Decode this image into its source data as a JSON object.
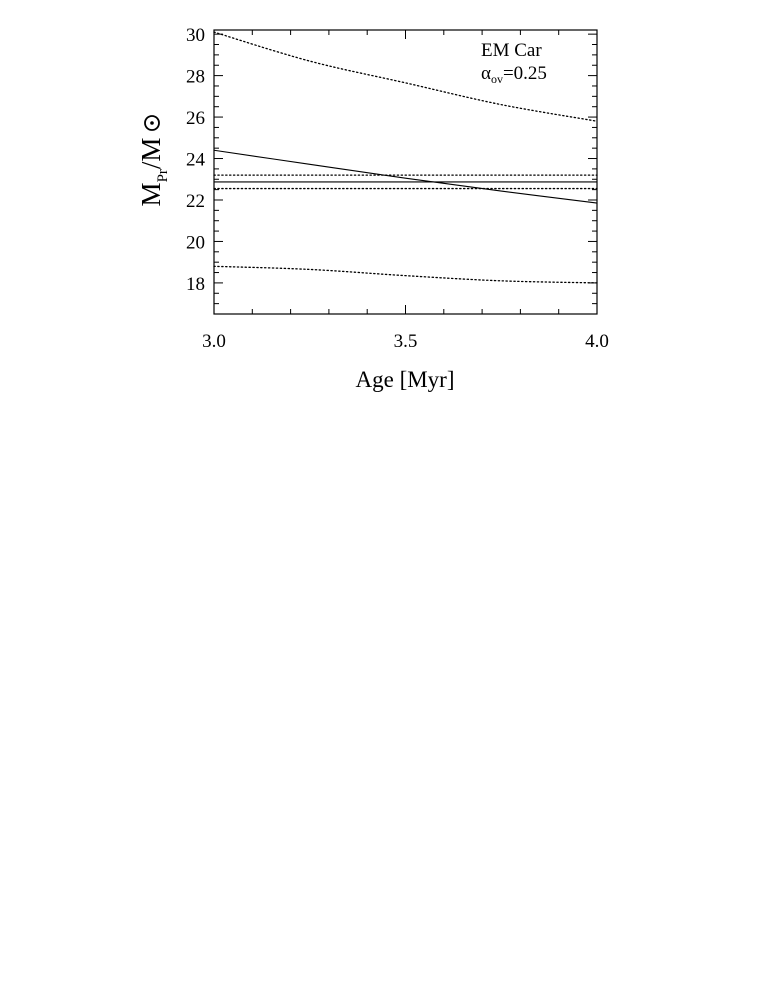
{
  "chart_data": {
    "type": "line",
    "xlabel": "Age [Myr]",
    "ylabel": {
      "main": "M",
      "subscript": "Pr",
      "suffix": "/M",
      "sun_symbol": "sun-symbol-icon"
    },
    "annotation": {
      "line1": "EM Car",
      "alpha": "α",
      "alpha_sub": "ov",
      "alpha_value": "=0.25"
    },
    "xlim": [
      3.0,
      4.0
    ],
    "ylim": [
      16.5,
      30.2
    ],
    "x_ticks": [
      3.0,
      3.5,
      4.0
    ],
    "x_tick_labels": [
      "3.0",
      "3.5",
      "4.0"
    ],
    "y_ticks": [
      18,
      20,
      22,
      24,
      26,
      28,
      30
    ],
    "y_tick_labels": [
      "18",
      "20",
      "22",
      "24",
      "26",
      "28",
      "30"
    ],
    "grid": false,
    "series": [
      {
        "style": "solid",
        "x": [
          3.0,
          3.25,
          3.5,
          3.75,
          4.0
        ],
        "y": [
          24.4,
          23.72,
          23.05,
          22.43,
          21.85
        ]
      },
      {
        "style": "dotted",
        "x": [
          3.0,
          3.25,
          3.5,
          3.75,
          4.0
        ],
        "y": [
          30.1,
          28.7,
          27.65,
          26.6,
          25.8
        ]
      },
      {
        "style": "dotted",
        "x": [
          3.0,
          3.25,
          3.5,
          3.75,
          4.0
        ],
        "y": [
          18.8,
          18.65,
          18.35,
          18.1,
          18.0
        ]
      },
      {
        "style": "solid",
        "x": [
          3.0,
          4.0
        ],
        "y": [
          22.87,
          22.87
        ]
      },
      {
        "style": "dotted",
        "x": [
          3.0,
          4.0
        ],
        "y": [
          23.2,
          23.2
        ]
      },
      {
        "style": "dotted",
        "x": [
          3.0,
          4.0
        ],
        "y": [
          22.55,
          22.55
        ]
      }
    ]
  }
}
